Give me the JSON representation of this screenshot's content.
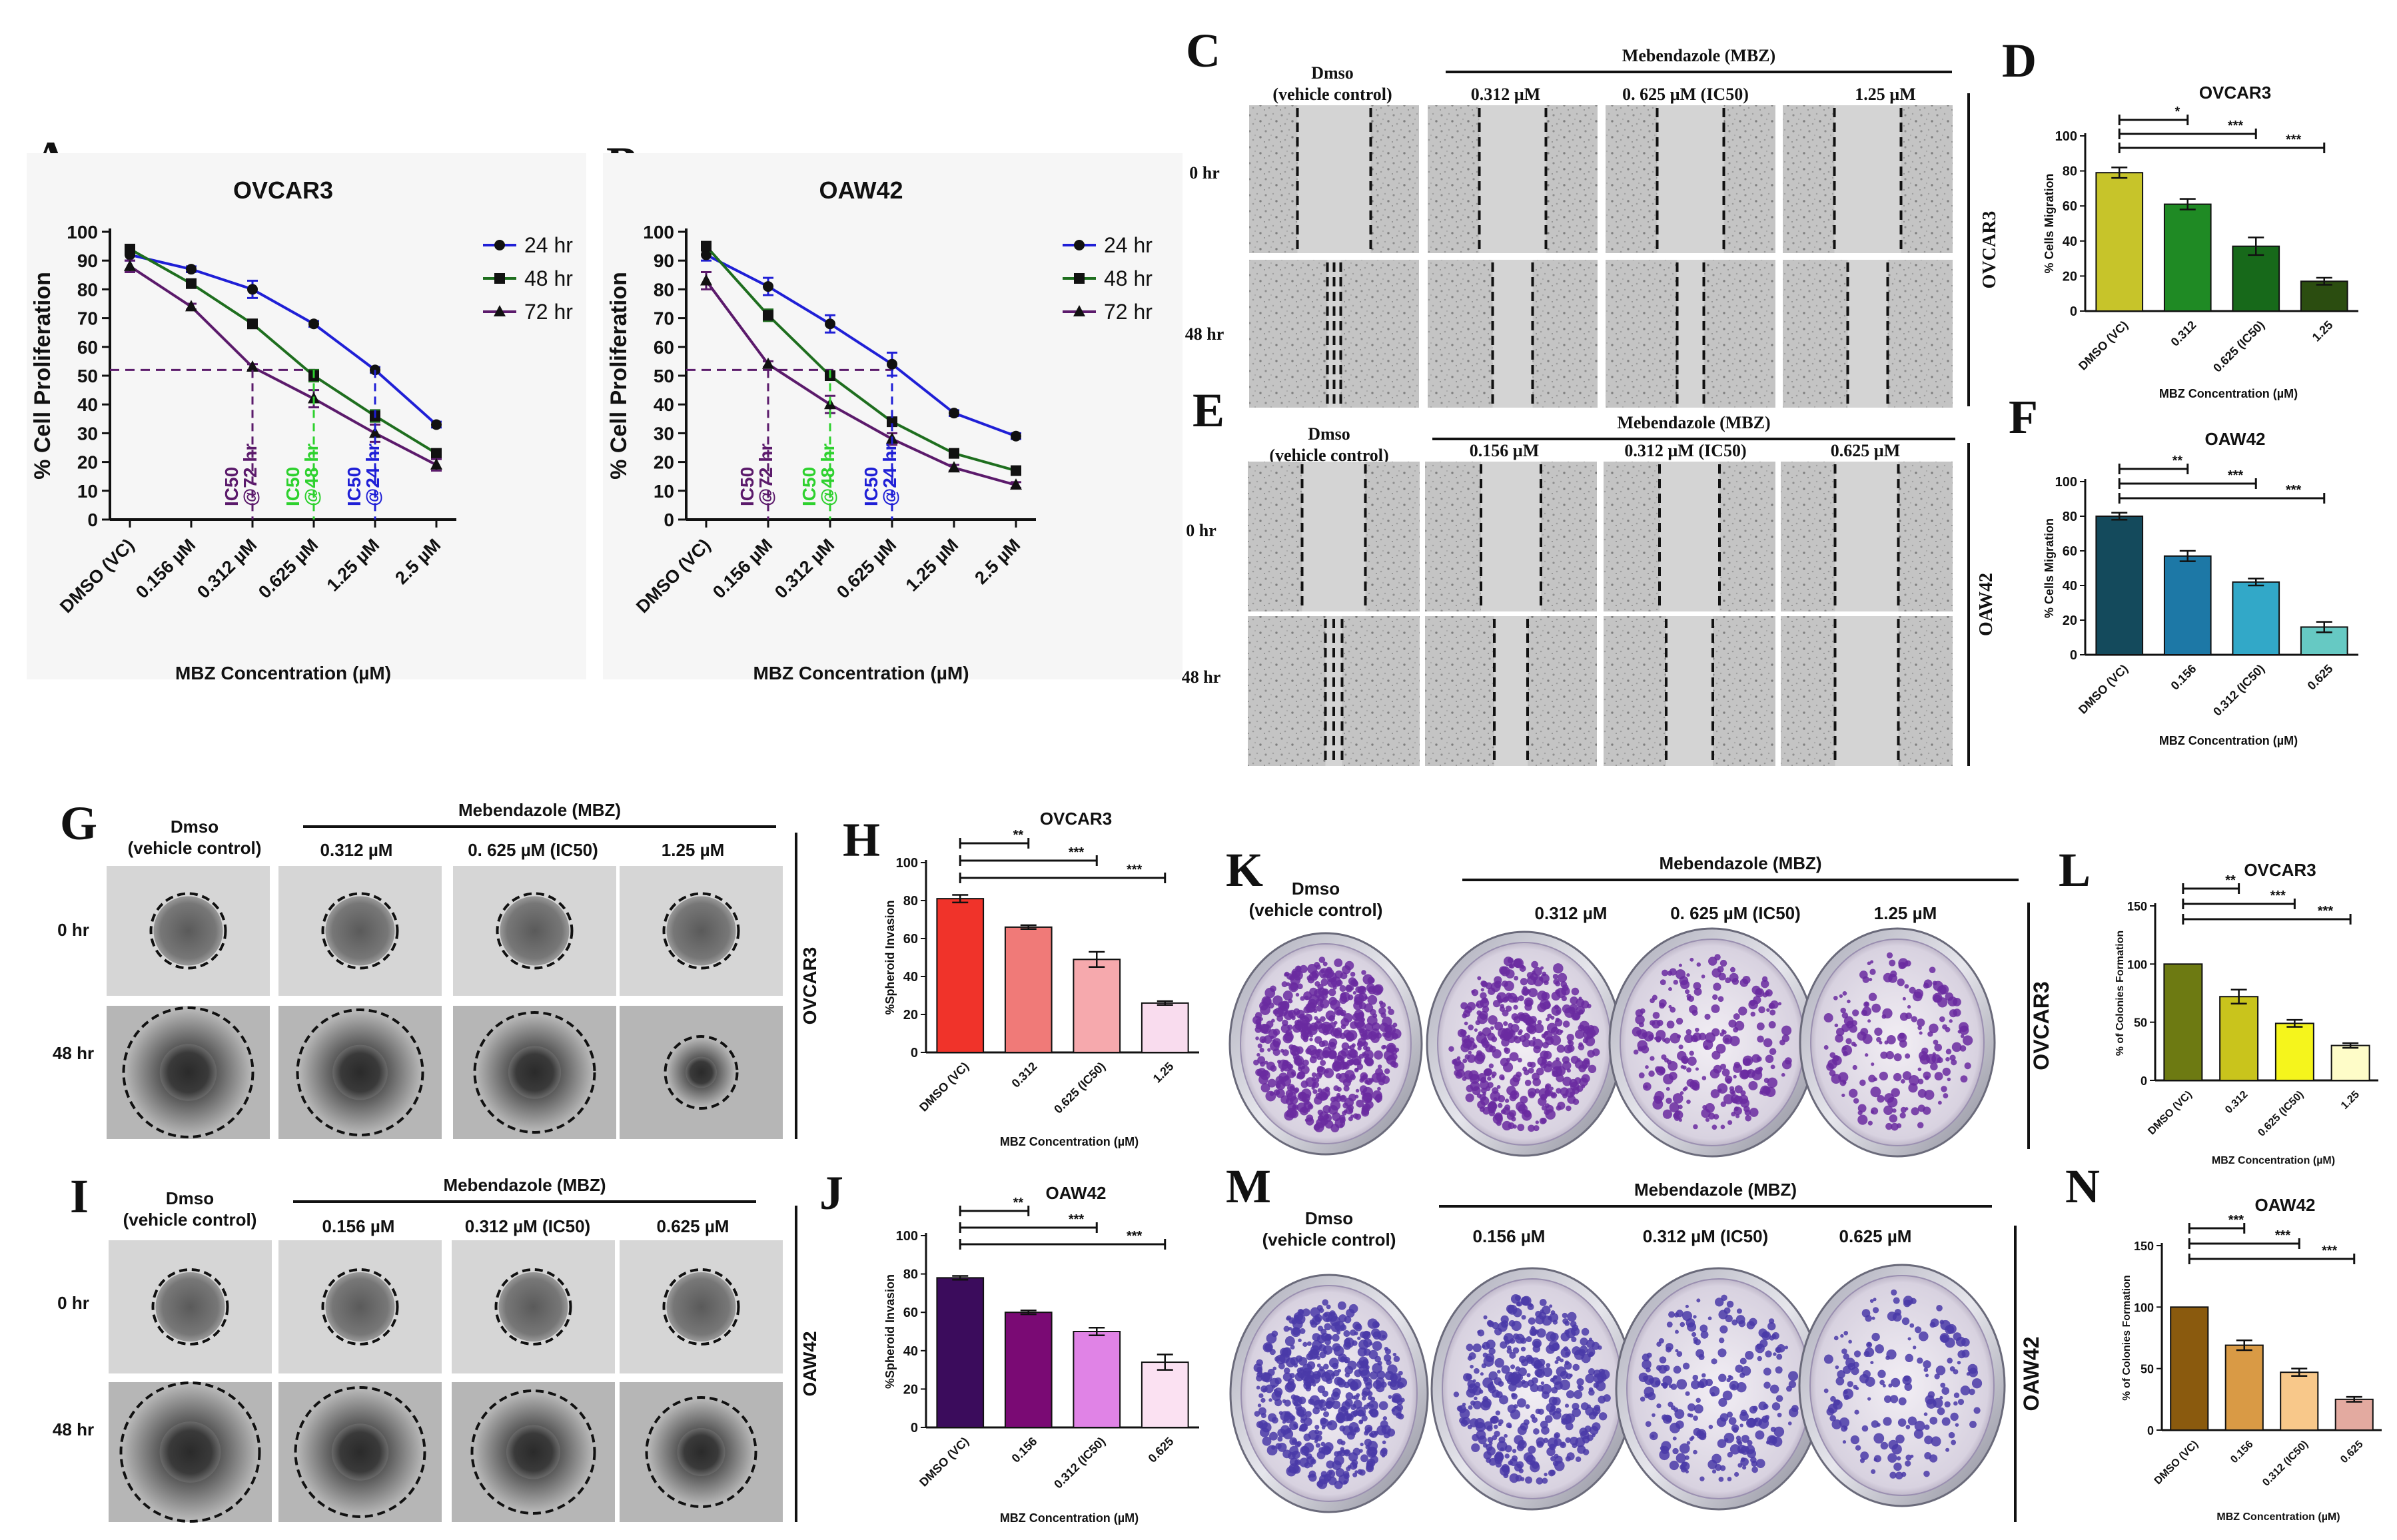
{
  "panel_letters": {
    "A": "A",
    "B": "B",
    "C": "C",
    "D": "D",
    "E": "E",
    "F": "F",
    "G": "G",
    "H": "H",
    "I": "I",
    "J": "J",
    "K": "K",
    "L": "L",
    "M": "M",
    "N": "N"
  },
  "colors": {
    "h24": "#1f1fd6",
    "h48": "#1e6e1e",
    "h72": "#5b1a6b",
    "D": [
      "#c7c42a",
      "#1f8a24",
      "#17691a",
      "#2b4d10"
    ],
    "F": [
      "#144a5c",
      "#1d78a6",
      "#32a8c8",
      "#66c9c3"
    ],
    "H": [
      "#f0332a",
      "#f07a78",
      "#f6a9ad",
      "#f9dcee"
    ],
    "J": [
      "#3b0c5c",
      "#7a0a74",
      "#e083e6",
      "#fbe1f2"
    ],
    "L": [
      "#6d7a12",
      "#c9c41c",
      "#f5f51c",
      "#fefcc8"
    ],
    "N": [
      "#8a5a0e",
      "#d99a45",
      "#f8c88a",
      "#e3aaa0"
    ]
  },
  "common": {
    "mbz": "Mebendazole (MBZ)",
    "dmso1": "Dmso",
    "dmso2": "(vehicle control)",
    "h0": "0 hr",
    "h48": "48 hr",
    "ovcar3": "OVCAR3",
    "oaw42": "OAW42",
    "xlabel": "MBZ Concentration (µM)"
  },
  "col_ovcar3": [
    "0.312 µM",
    "0. 625 µM (IC50)",
    "1.25 µM"
  ],
  "col_oaw42": [
    "0.156 µM",
    "0.312 µM (IC50)",
    "0.625 µM"
  ],
  "legend": [
    "24 hr",
    "48 hr",
    "72 hr"
  ],
  "ic50_labels": {
    "t72": [
      "IC50",
      "@72 hr"
    ],
    "t48": [
      "IC50",
      "@48 hr"
    ],
    "t24": [
      "IC50",
      "@24 hr"
    ]
  },
  "chart_data": [
    {
      "id": "A",
      "type": "line",
      "title": "OVCAR3",
      "xlabel": "MBZ Concentration (µM)",
      "ylabel": "% Cell Proliferation",
      "categories": [
        "DMSO (VC)",
        "0.156 µM",
        "0.312 µM",
        "0.625 µM",
        "1.25 µM",
        "2.5 µM"
      ],
      "ylim": [
        0,
        100
      ],
      "yticks": [
        0,
        10,
        20,
        30,
        40,
        50,
        60,
        70,
        80,
        90,
        100
      ],
      "series": [
        {
          "name": "24 hr",
          "values": [
            92,
            87,
            80,
            68,
            52,
            33
          ],
          "err": [
            2,
            1,
            3,
            1,
            1,
            1
          ]
        },
        {
          "name": "48 hr",
          "values": [
            94,
            82,
            68,
            50,
            36,
            23
          ],
          "err": [
            1,
            1,
            1,
            2,
            2,
            1
          ]
        },
        {
          "name": "72 hr",
          "values": [
            88,
            74,
            53,
            42,
            30,
            19
          ],
          "err": [
            2,
            1,
            1,
            3,
            3,
            2
          ]
        }
      ],
      "ic50_line": 52
    },
    {
      "id": "B",
      "type": "line",
      "title": "OAW42",
      "xlabel": "MBZ Concentration (µM)",
      "ylabel": "% Cell Proliferation",
      "categories": [
        "DMSO (VC)",
        "0.156 µM",
        "0.312 µM",
        "0.625 µM",
        "1.25 µM",
        "2.5 µM"
      ],
      "ylim": [
        0,
        100
      ],
      "yticks": [
        0,
        10,
        20,
        30,
        40,
        50,
        60,
        70,
        80,
        90,
        100
      ],
      "series": [
        {
          "name": "24 hr",
          "values": [
            92,
            81,
            68,
            54,
            37,
            29
          ],
          "err": [
            2,
            3,
            3,
            4,
            1,
            1
          ]
        },
        {
          "name": "48 hr",
          "values": [
            95,
            71,
            50,
            34,
            23,
            17
          ],
          "err": [
            1,
            2,
            1,
            1,
            1,
            1
          ]
        },
        {
          "name": "72 hr",
          "values": [
            83,
            54,
            40,
            28,
            18,
            12
          ],
          "err": [
            3,
            1,
            3,
            2,
            1,
            1
          ]
        }
      ],
      "ic50_line": 52
    },
    {
      "id": "D",
      "type": "bar",
      "title": "OVCAR3",
      "xlabel": "MBZ Concentration (µM)",
      "ylabel": "% Cells Migration",
      "categories": [
        "DMSO (VC)",
        "0.312",
        "0.625 (IC50)",
        "1.25"
      ],
      "values": [
        79,
        61,
        37,
        17
      ],
      "err": [
        3,
        3,
        5,
        2
      ],
      "ylim": [
        0,
        100
      ],
      "yticks": [
        0,
        20,
        40,
        60,
        80,
        100
      ],
      "sig": [
        "*",
        "***",
        "***"
      ]
    },
    {
      "id": "F",
      "type": "bar",
      "title": "OAW42",
      "xlabel": "MBZ Concentration (µM)",
      "ylabel": "% Cells Migration",
      "categories": [
        "DMSO (VC)",
        "0.156",
        "0.312 (IC50)",
        "0.625"
      ],
      "values": [
        80,
        57,
        42,
        16
      ],
      "err": [
        2,
        3,
        2,
        3
      ],
      "ylim": [
        0,
        100
      ],
      "yticks": [
        0,
        20,
        40,
        60,
        80,
        100
      ],
      "sig": [
        "**",
        "***",
        "***"
      ]
    },
    {
      "id": "H",
      "type": "bar",
      "title": "OVCAR3",
      "xlabel": "MBZ Concentration (µM)",
      "ylabel": "%Spheroid Invasion",
      "categories": [
        "DMSO (VC)",
        "0.312",
        "0.625 (IC50)",
        "1.25"
      ],
      "values": [
        81,
        66,
        49,
        26
      ],
      "err": [
        2,
        1,
        4,
        1
      ],
      "ylim": [
        0,
        100
      ],
      "yticks": [
        0,
        20,
        40,
        60,
        80,
        100
      ],
      "sig": [
        "**",
        "***",
        "***"
      ]
    },
    {
      "id": "J",
      "type": "bar",
      "title": "OAW42",
      "xlabel": "MBZ Concentration (µM)",
      "ylabel": "%Spheroid Invasion",
      "categories": [
        "DMSO (VC)",
        "0.156",
        "0.312 (IC50)",
        "0.625"
      ],
      "values": [
        78,
        60,
        50,
        34
      ],
      "err": [
        1,
        1,
        2,
        4
      ],
      "ylim": [
        0,
        100
      ],
      "yticks": [
        0,
        20,
        40,
        60,
        80,
        100
      ],
      "sig": [
        "**",
        "***",
        "***"
      ]
    },
    {
      "id": "L",
      "type": "bar",
      "title": "OVCAR3",
      "xlabel": "MBZ Concentration (µM)",
      "ylabel": "% of Colonies Formation",
      "categories": [
        "DMSO (VC)",
        "0.312",
        "0.625 (IC50)",
        "1.25"
      ],
      "values": [
        100,
        72,
        49,
        30
      ],
      "err": [
        0,
        6,
        3,
        2
      ],
      "ylim": [
        0,
        150
      ],
      "yticks": [
        0,
        50,
        100,
        150
      ],
      "sig": [
        "**",
        "***",
        "***"
      ]
    },
    {
      "id": "N",
      "type": "bar",
      "title": "OAW42",
      "xlabel": "MBZ Concentration (µM)",
      "ylabel": "% of Colonies Formation",
      "categories": [
        "DMSO (VC)",
        "0.156",
        "0.312 (IC50)",
        "0.625"
      ],
      "values": [
        100,
        69,
        47,
        25
      ],
      "err": [
        0,
        4,
        3,
        2
      ],
      "ylim": [
        0,
        150
      ],
      "yticks": [
        0,
        50,
        100,
        150
      ],
      "sig": [
        "***",
        "***",
        "***"
      ]
    }
  ]
}
